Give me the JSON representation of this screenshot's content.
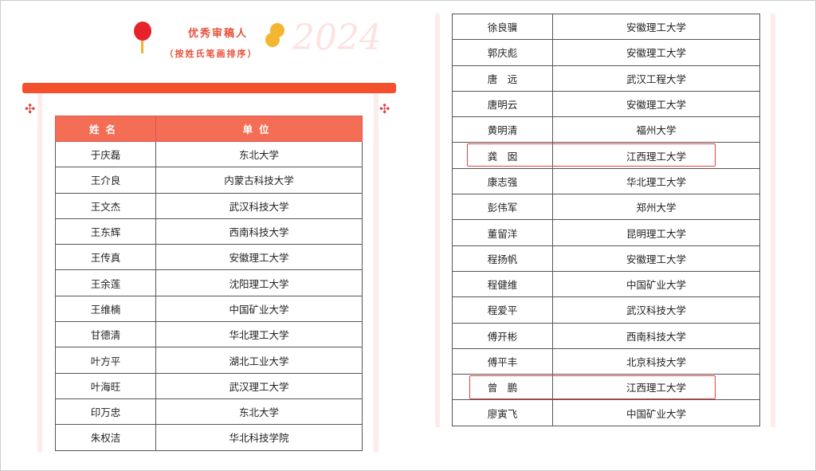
{
  "header": {
    "title": "优秀审稿人",
    "subtitle": "（按姓氏笔画排序）",
    "year_watermark": "2024"
  },
  "colors": {
    "accent": "#f4502e",
    "header_bg": "#f46e55",
    "highlight": "#e04040"
  },
  "table": {
    "columns": [
      "姓名",
      "单位"
    ],
    "left_rows": [
      [
        "于庆磊",
        "东北大学"
      ],
      [
        "王介良",
        "内蒙古科技大学"
      ],
      [
        "王文杰",
        "武汉科技大学"
      ],
      [
        "王东辉",
        "西南科技大学"
      ],
      [
        "王传真",
        "安徽理工大学"
      ],
      [
        "王余莲",
        "沈阳理工大学"
      ],
      [
        "王维楠",
        "中国矿业大学"
      ],
      [
        "甘德清",
        "华北理工大学"
      ],
      [
        "叶方平",
        "湖北工业大学"
      ],
      [
        "叶海旺",
        "武汉理工大学"
      ],
      [
        "印万忠",
        "东北大学"
      ],
      [
        "朱权洁",
        "华北科技学院"
      ]
    ],
    "right_rows": [
      [
        "徐良骥",
        "安徽理工大学"
      ],
      [
        "郭庆彪",
        "安徽理工大学"
      ],
      [
        "唐　远",
        "武汉工程大学"
      ],
      [
        "唐明云",
        "安徽理工大学"
      ],
      [
        "黄明清",
        "福州大学"
      ],
      [
        "龚　囡",
        "江西理工大学"
      ],
      [
        "康志强",
        "华北理工大学"
      ],
      [
        "彭伟军",
        "郑州大学"
      ],
      [
        "董留洋",
        "昆明理工大学"
      ],
      [
        "程扬帆",
        "安徽理工大学"
      ],
      [
        "程健维",
        "中国矿业大学"
      ],
      [
        "程爱平",
        "武汉科技大学"
      ],
      [
        "傅开彬",
        "西南科技大学"
      ],
      [
        "傅平丰",
        "北京科技大学"
      ],
      [
        "曾　鹏",
        "江西理工大学"
      ],
      [
        "廖寅飞",
        "中国矿业大学"
      ]
    ]
  }
}
